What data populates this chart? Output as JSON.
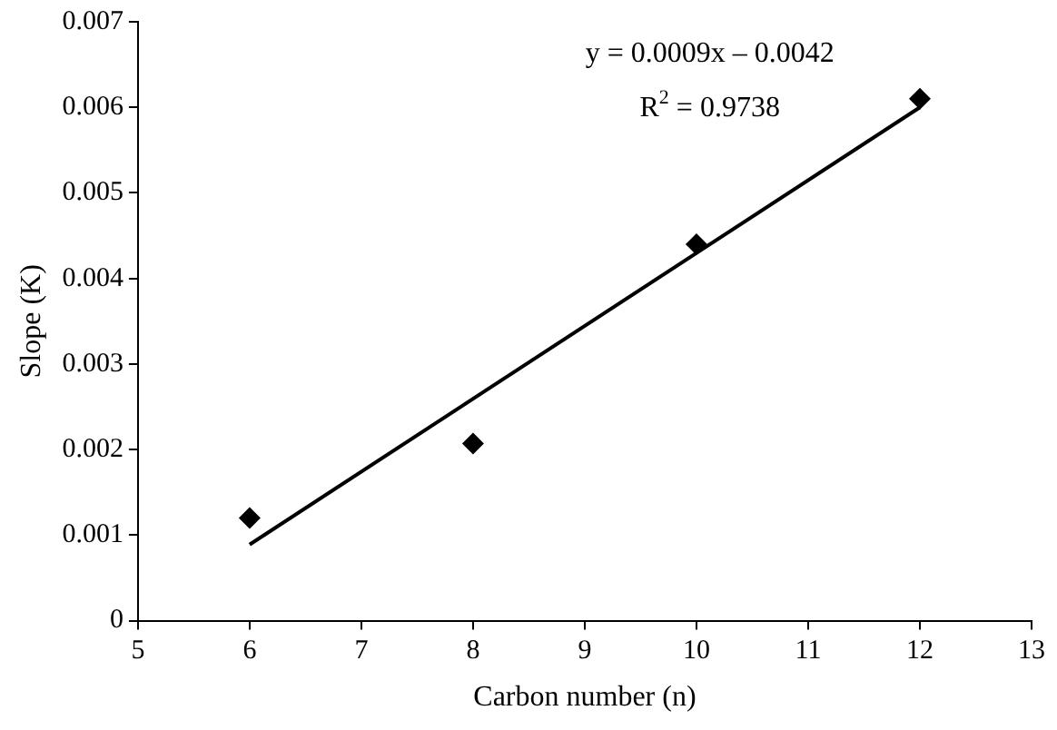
{
  "chart_data": {
    "type": "scatter",
    "xlabel": "Carbon number (n)",
    "ylabel": "Slope (K)",
    "x": [
      6,
      8,
      10,
      12
    ],
    "series": [
      {
        "type": "scatter",
        "color": "#000000",
        "values": [
          0.0012,
          0.00207,
          0.0044,
          0.0061
        ]
      },
      {
        "type": "line",
        "color": "#000000",
        "marker": "none",
        "x": [
          6,
          12
        ],
        "values": [
          0.00089,
          0.006
        ]
      }
    ],
    "xlim": [
      5,
      13
    ],
    "xticks": [
      5,
      6,
      7,
      8,
      9,
      10,
      11,
      12,
      13
    ],
    "ylim": [
      0,
      0.007
    ],
    "yticks": [
      0,
      0.001,
      0.002,
      0.003,
      0.004,
      0.005,
      0.006,
      0.007
    ],
    "marker": "diamond",
    "line_style": "solid",
    "annotations": [
      "y = 0.0009x – 0.0042",
      "R$^{2}$ = 0.9738"
    ]
  }
}
